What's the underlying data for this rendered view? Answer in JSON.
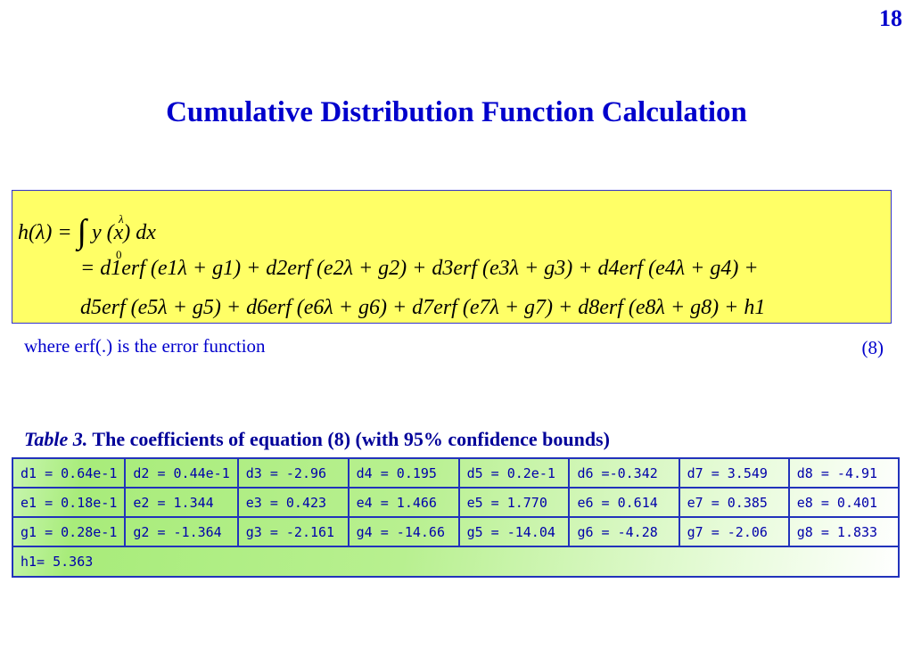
{
  "page_number": "18",
  "title": "Cumulative Distribution Function Calculation",
  "equation": {
    "line1": {
      "lhs": "h(λ) =",
      "upper_limit": "λ",
      "lower_limit": "0",
      "integrand": "y (x) dx"
    },
    "line2": "= d1erf (e1λ + g1) + d2erf (e2λ + g2) + d3erf (e3λ + g3) + d4erf (e4λ + g4) +",
    "line3": "d5erf (e5λ + g5) + d6erf (e6λ + g6) + d7erf (e7λ + g7) + d8erf (e8λ + g8) + h1"
  },
  "caption": "where erf(.) is the error function",
  "equation_number": "(8)",
  "table_caption": {
    "label": "Table 3.",
    "text": "The coefficients of equation (8) (with 95% confidence bounds)"
  },
  "table": {
    "rows": [
      [
        "d1 = 0.64e-1",
        "d2 = 0.44e-1",
        "d3 = -2.96",
        "d4 = 0.195",
        "d5 = 0.2e-1",
        "d6 =-0.342",
        "d7 = 3.549",
        "d8 = -4.91"
      ],
      [
        "e1 = 0.18e-1",
        "e2 = 1.344",
        "e3 = 0.423",
        "e4 = 1.466",
        "e5 = 1.770",
        "e6 = 0.614",
        "e7 = 0.385",
        "e8 = 0.401"
      ],
      [
        "g1 = 0.28e-1",
        "g2 = -1.364",
        "g3 = -2.161",
        "g4 = -14.66",
        "g5 = -14.04",
        "g6 = -4.28",
        "g7 = -2.06",
        "g8 = 1.833"
      ]
    ],
    "last_row": "h1= 5.363"
  }
}
